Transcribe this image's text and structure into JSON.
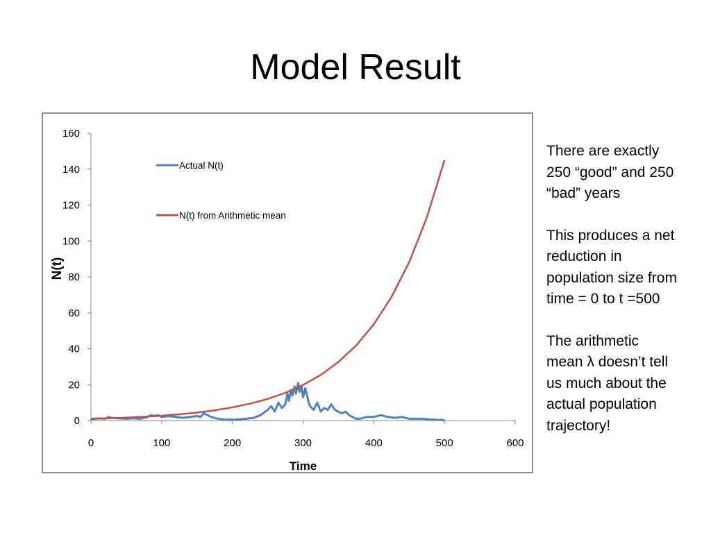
{
  "slide": {
    "title": "Model Result",
    "notes": [
      "There are exactly 250 “good” and 250 “bad” years",
      "This produces a net reduction in population size from time = 0 to t =500",
      "The arithmetic mean λ doesn’t tell us much about the actual population trajectory!"
    ]
  },
  "colors": {
    "actual": "#4f81bd",
    "arith": "#c0504d",
    "axis": "#868686",
    "frame": "#8c8c8c"
  },
  "chart_data": {
    "type": "line",
    "xlabel": "Time",
    "ylabel": "N(t)",
    "xlim": [
      0,
      600
    ],
    "ylim": [
      0,
      160
    ],
    "xticks": [
      0,
      100,
      200,
      300,
      400,
      500,
      600
    ],
    "yticks": [
      0,
      20,
      40,
      60,
      80,
      100,
      120,
      140,
      160
    ],
    "grid": false,
    "legend_position": "top-left inside plot",
    "series": [
      {
        "name": "Actual N(t)",
        "color": "#4f81bd",
        "x": [
          0,
          10,
          20,
          25,
          30,
          40,
          50,
          60,
          70,
          80,
          85,
          90,
          95,
          100,
          110,
          120,
          130,
          140,
          150,
          155,
          160,
          165,
          170,
          180,
          190,
          200,
          210,
          220,
          230,
          240,
          250,
          255,
          260,
          265,
          270,
          275,
          278,
          280,
          283,
          285,
          288,
          290,
          293,
          295,
          298,
          300,
          303,
          305,
          308,
          310,
          315,
          320,
          325,
          330,
          335,
          340,
          345,
          350,
          355,
          360,
          365,
          370,
          375,
          380,
          390,
          400,
          410,
          420,
          430,
          440,
          450,
          460,
          470,
          480,
          490,
          500
        ],
        "y": [
          0.8,
          1.2,
          1,
          2,
          1.5,
          1.2,
          1,
          1.3,
          1,
          2,
          3,
          2.5,
          3,
          2,
          2.5,
          2,
          1.5,
          2,
          2.5,
          2,
          4,
          3,
          2,
          1,
          0.5,
          0.5,
          0.7,
          1,
          1.5,
          3,
          6,
          8,
          5,
          10,
          7,
          9,
          15,
          11,
          17,
          14,
          19,
          15,
          21,
          16,
          19,
          13,
          18,
          15,
          10,
          8,
          6,
          10,
          5,
          7,
          6,
          9,
          6,
          5,
          4,
          5,
          3,
          2,
          1,
          1,
          2,
          2,
          3,
          2,
          1.5,
          2,
          1,
          1,
          1,
          0.6,
          0.4,
          0.3
        ]
      },
      {
        "name": "N(t) from Arithmetic mean",
        "color": "#c0504d",
        "x": [
          0,
          25,
          50,
          75,
          100,
          125,
          150,
          175,
          200,
          225,
          250,
          275,
          300,
          325,
          350,
          375,
          400,
          425,
          450,
          475,
          500
        ],
        "y": [
          1,
          1.28,
          1.65,
          2.11,
          2.71,
          3.47,
          4.46,
          5.71,
          7.33,
          9.4,
          12.05,
          15.46,
          19.83,
          25.42,
          32.6,
          41.8,
          53.6,
          68.8,
          88.2,
          113.1,
          145
        ]
      }
    ]
  }
}
